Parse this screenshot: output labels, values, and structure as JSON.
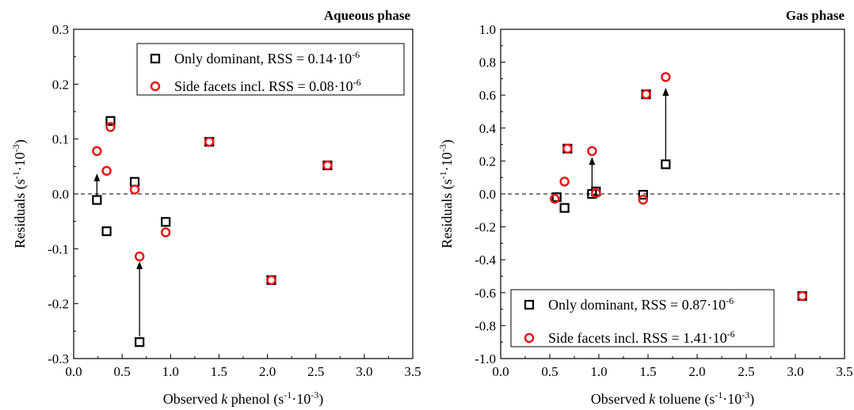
{
  "chart_data": [
    {
      "type": "scatter",
      "title": "Aqueous phase",
      "xlabel_parts": [
        "Observed ",
        "k",
        " phenol (s",
        "-1",
        "·10",
        "-3",
        ")"
      ],
      "ylabel_parts": [
        "Residuals (s",
        "-1",
        "·10",
        "-3",
        ")"
      ],
      "xlim": [
        0.0,
        3.5
      ],
      "ylim": [
        -0.3,
        0.3
      ],
      "x_ticks": [
        "0.0",
        "0.5",
        "1.0",
        "1.5",
        "2.0",
        "2.5",
        "3.0",
        "3.5"
      ],
      "y_ticks": [
        "-0.3",
        "-0.2",
        "-0.1",
        "0.0",
        "0.1",
        "0.2",
        "0.3"
      ],
      "x_tick_values": [
        0.0,
        0.5,
        1.0,
        1.5,
        2.0,
        2.5,
        3.0,
        3.5
      ],
      "y_tick_values": [
        -0.3,
        -0.2,
        -0.1,
        0.0,
        0.1,
        0.2,
        0.3
      ],
      "legend_position": "top-right",
      "series": [
        {
          "name_parts": [
            "Only dominant, RSS = 0.14·10",
            "-6"
          ],
          "marker": "square",
          "color": "#000000",
          "points": [
            [
              0.24,
              -0.011
            ],
            [
              0.34,
              -0.068
            ],
            [
              0.38,
              0.133
            ],
            [
              0.63,
              0.022
            ],
            [
              0.68,
              -0.27
            ],
            [
              0.95,
              -0.051
            ],
            [
              1.4,
              0.095
            ],
            [
              2.04,
              -0.157
            ],
            [
              2.62,
              0.052
            ]
          ]
        },
        {
          "name_parts": [
            "Side facets incl. RSS = 0.08·10",
            "-6"
          ],
          "marker": "circle",
          "color": "#e8161b",
          "points": [
            [
              0.24,
              0.078
            ],
            [
              0.34,
              0.042
            ],
            [
              0.38,
              0.122
            ],
            [
              0.63,
              0.008
            ],
            [
              0.68,
              -0.114
            ],
            [
              0.95,
              -0.07
            ],
            [
              1.4,
              0.095
            ],
            [
              2.04,
              -0.157
            ],
            [
              2.62,
              0.052
            ]
          ]
        }
      ],
      "arrows": [
        {
          "x": 0.24,
          "from": -0.003,
          "to": 0.03
        },
        {
          "x": 0.68,
          "from": -0.26,
          "to": -0.13
        }
      ]
    },
    {
      "type": "scatter",
      "title": "Gas phase",
      "xlabel_parts": [
        "Observed ",
        "k",
        " toluene (s",
        "-1",
        "·10",
        "-3",
        ")"
      ],
      "ylabel_parts": [
        "Residuals (s",
        "-1",
        "·10",
        "-3",
        ")"
      ],
      "xlim": [
        0.0,
        3.5
      ],
      "ylim": [
        -1.0,
        1.0
      ],
      "x_ticks": [
        "0.0",
        "0.5",
        "1.0",
        "1.5",
        "2.0",
        "2.5",
        "3.0",
        "3.5"
      ],
      "y_ticks": [
        "-1.0",
        "-0.8",
        "-0.6",
        "-0.4",
        "-0.2",
        "0.0",
        "0.2",
        "0.4",
        "0.6",
        "0.8",
        "1.0"
      ],
      "x_tick_values": [
        0.0,
        0.5,
        1.0,
        1.5,
        2.0,
        2.5,
        3.0,
        3.5
      ],
      "y_tick_values": [
        -1.0,
        -0.8,
        -0.6,
        -0.4,
        -0.2,
        0.0,
        0.2,
        0.4,
        0.6,
        0.8,
        1.0
      ],
      "legend_position": "bottom-left",
      "series": [
        {
          "name_parts": [
            "Only dominant, RSS = 0.87·10",
            "-6"
          ],
          "marker": "square",
          "color": "#000000",
          "points": [
            [
              0.57,
              -0.02
            ],
            [
              0.65,
              -0.085
            ],
            [
              0.68,
              0.275
            ],
            [
              0.93,
              0.0
            ],
            [
              0.97,
              0.015
            ],
            [
              1.45,
              -0.005
            ],
            [
              1.48,
              0.605
            ],
            [
              1.68,
              0.18
            ],
            [
              3.07,
              -0.62
            ]
          ]
        },
        {
          "name_parts": [
            "Side facets incl. RSS = 1.41·10",
            "-6"
          ],
          "marker": "circle",
          "color": "#e8161b",
          "points": [
            [
              0.55,
              -0.03
            ],
            [
              0.65,
              0.075
            ],
            [
              0.68,
              0.275
            ],
            [
              0.93,
              0.26
            ],
            [
              0.97,
              0.005
            ],
            [
              1.45,
              -0.035
            ],
            [
              1.48,
              0.605
            ],
            [
              1.68,
              0.71
            ],
            [
              3.07,
              -0.62
            ]
          ]
        }
      ],
      "arrows": [
        {
          "x": 0.93,
          "from": 0.02,
          "to": 0.2
        },
        {
          "x": 1.68,
          "from": 0.2,
          "to": 0.62
        }
      ]
    }
  ]
}
